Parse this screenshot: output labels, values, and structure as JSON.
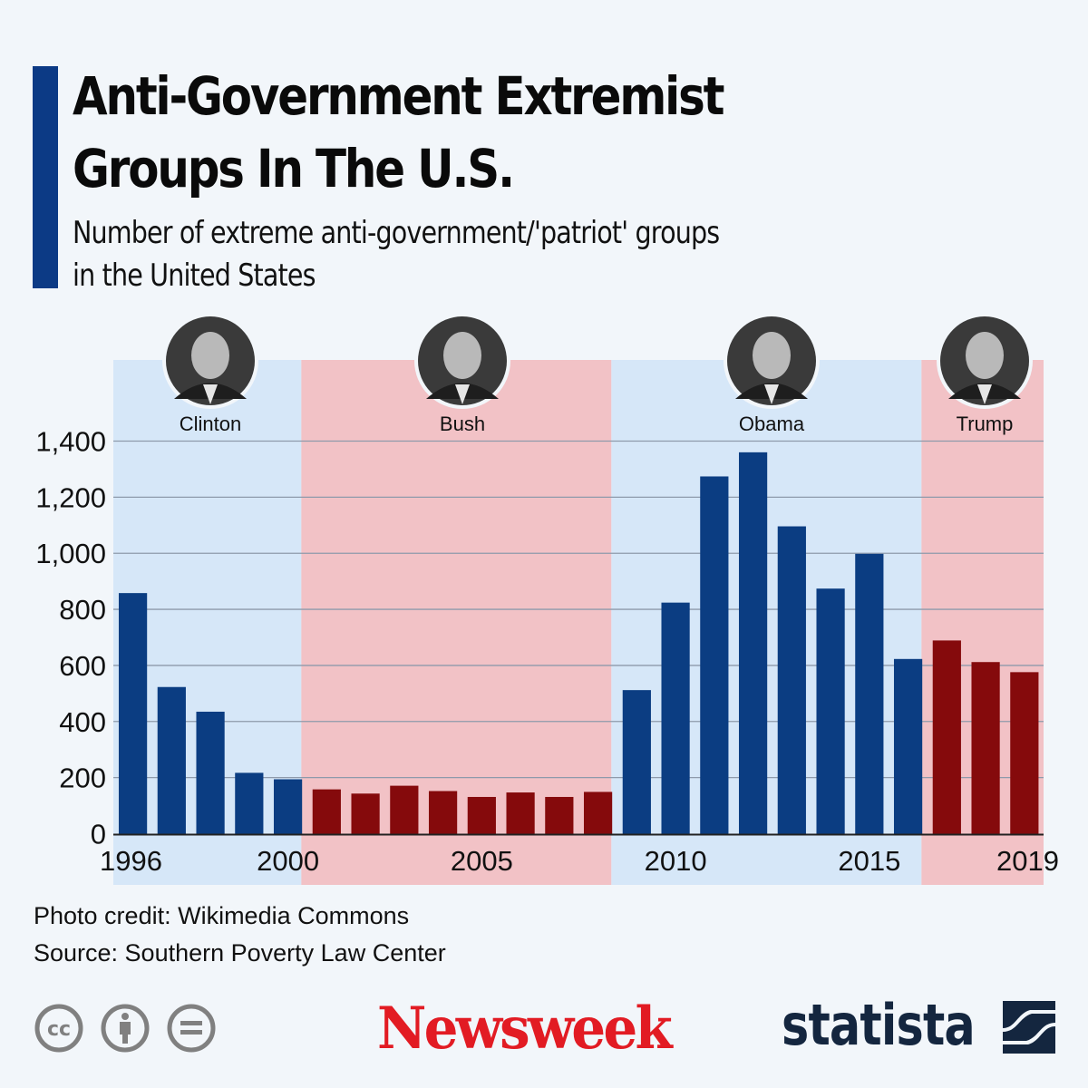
{
  "header": {
    "title_line1": "Anti-Government Extremist",
    "title_line2": "Groups In The U.S.",
    "subtitle_line1": "Number of extreme anti-government/'patriot' groups",
    "subtitle_line2": "in the United States"
  },
  "colors": {
    "accent": "#0c3a85",
    "democrat_bar": "#0b3d82",
    "republican_bar": "#850a0c",
    "democrat_band": "#d6e7f8",
    "republican_band": "#f2c2c6",
    "newsweek_red": "#e21b23",
    "statista_navy": "#14263f"
  },
  "chart_data": {
    "type": "bar",
    "title": "Anti-Government Extremist Groups In The U.S.",
    "subtitle": "Number of extreme anti-government/'patriot' groups in the United States",
    "xlabel": "",
    "ylabel": "",
    "categories": [
      "1996",
      "1997",
      "1998",
      "1999",
      "2000",
      "2001",
      "2002",
      "2003",
      "2004",
      "2005",
      "2006",
      "2007",
      "2008",
      "2009",
      "2010",
      "2011",
      "2012",
      "2013",
      "2014",
      "2015",
      "2016",
      "2017",
      "2018",
      "2019"
    ],
    "values": [
      858,
      523,
      435,
      217,
      194,
      158,
      143,
      171,
      152,
      131,
      147,
      131,
      149,
      512,
      824,
      1274,
      1360,
      1096,
      874,
      998,
      623,
      689,
      612,
      576
    ],
    "ylim": [
      0,
      1400
    ],
    "yticks": [
      0,
      200,
      400,
      600,
      800,
      1000,
      1200,
      1400
    ],
    "ytick_labels": [
      "0",
      "200",
      "400",
      "600",
      "800",
      "1,000",
      "1,200",
      "1,400"
    ],
    "xtick_labels": [
      {
        "year": "1996",
        "label": "1996"
      },
      {
        "year": "2000",
        "label": "2000"
      },
      {
        "year": "2005",
        "label": "2005"
      },
      {
        "year": "2010",
        "label": "2010"
      },
      {
        "year": "2015",
        "label": "2015"
      },
      {
        "year": "2019",
        "label": "2019"
      }
    ],
    "grid": true,
    "presidencies": [
      {
        "name": "Clinton",
        "party": "democrat",
        "start": "1996",
        "end": "2000"
      },
      {
        "name": "Bush",
        "party": "republican",
        "start": "2001",
        "end": "2008"
      },
      {
        "name": "Obama",
        "party": "democrat",
        "start": "2009",
        "end": "2016"
      },
      {
        "name": "Trump",
        "party": "republican",
        "start": "2017",
        "end": "2019"
      }
    ]
  },
  "footer": {
    "photo_credit": "Photo credit: Wikimedia Commons",
    "source": "Source: Southern Poverty Law Center",
    "license_icons": [
      "cc-icon",
      "attribution-icon",
      "no-derivatives-icon"
    ],
    "newsweek_logo": "Newsweek",
    "statista_logo": "statista"
  }
}
